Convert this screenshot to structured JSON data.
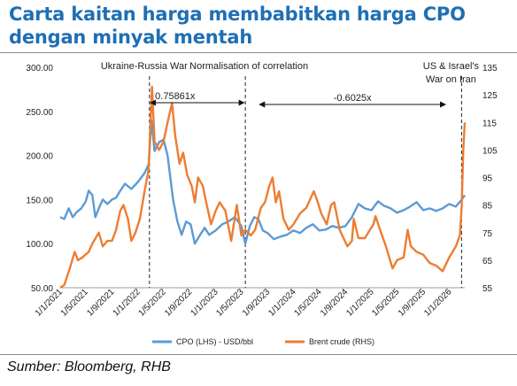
{
  "header": {
    "title": "Carta kaitan harga membabitkan harga CPO dengan minyak mentah"
  },
  "footer": {
    "source": "Sumber: Bloomberg, RHB"
  },
  "colors": {
    "title": "#1f6fb4",
    "cpo": "#5b9bd5",
    "brent": "#ed7d31"
  },
  "chart_data": {
    "type": "line",
    "title": "",
    "x_tick_labels": [
      "1/1/2021",
      "1/5/2021",
      "1/9/2021",
      "1/1/2022",
      "1/5/2022",
      "1/9/2022",
      "1/1/2023",
      "1/5/2023",
      "1/9/2023",
      "1/1/2024",
      "1/5/2024",
      "1/9/2024",
      "1/1/2025",
      "1/5/2025",
      "1/9/2025",
      "1/1/2026"
    ],
    "x_range": [
      "2021-01-01",
      "2026-03-15"
    ],
    "y_left": {
      "range": [
        50,
        300
      ],
      "ticks": [
        "50.00",
        "100.00",
        "150.00",
        "200.00",
        "250.00",
        "300.00"
      ]
    },
    "y_right": {
      "range": [
        55,
        135
      ],
      "ticks": [
        "55",
        "65",
        "75",
        "85",
        "95",
        "105",
        "115",
        "125",
        "135"
      ]
    },
    "annotations": {
      "events": [
        {
          "label": "Ukraine-Russia War",
          "date": "2022-02-24"
        },
        {
          "label": "Normalisation of correlation",
          "date": "2023-05-20"
        },
        {
          "label": "US & Israel's War on Iran",
          "date": "2026-02-28"
        }
      ],
      "correlations": [
        {
          "label": "0.75861x",
          "from": "2022-02-28",
          "to": "2023-05-15"
        },
        {
          "label": "-0.6025x",
          "from": "2023-07-25",
          "to": "2025-12-15"
        }
      ]
    },
    "series": [
      {
        "name": "CPO (LHS) - USD/bbl",
        "axis": "left",
        "points": [
          [
            "2021-01-01",
            130
          ],
          [
            "2021-01-20",
            128
          ],
          [
            "2021-02-10",
            140
          ],
          [
            "2021-03-01",
            130
          ],
          [
            "2021-03-20",
            136
          ],
          [
            "2021-04-10",
            140
          ],
          [
            "2021-05-01",
            148
          ],
          [
            "2021-05-15",
            160
          ],
          [
            "2021-06-01",
            155
          ],
          [
            "2021-06-15",
            130
          ],
          [
            "2021-07-01",
            140
          ],
          [
            "2021-07-20",
            150
          ],
          [
            "2021-08-10",
            145
          ],
          [
            "2021-09-01",
            150
          ],
          [
            "2021-09-20",
            152
          ],
          [
            "2021-10-10",
            160
          ],
          [
            "2021-11-01",
            168
          ],
          [
            "2021-12-01",
            162
          ],
          [
            "2022-01-01",
            170
          ],
          [
            "2022-02-01",
            180
          ],
          [
            "2022-02-20",
            190
          ],
          [
            "2022-03-05",
            240
          ],
          [
            "2022-03-20",
            205
          ],
          [
            "2022-04-10",
            215
          ],
          [
            "2022-05-01",
            218
          ],
          [
            "2022-05-20",
            200
          ],
          [
            "2022-06-15",
            150
          ],
          [
            "2022-07-05",
            125
          ],
          [
            "2022-07-25",
            110
          ],
          [
            "2022-08-15",
            125
          ],
          [
            "2022-09-05",
            122
          ],
          [
            "2022-09-25",
            100
          ],
          [
            "2022-10-20",
            110
          ],
          [
            "2022-11-10",
            118
          ],
          [
            "2022-12-01",
            110
          ],
          [
            "2023-01-01",
            115
          ],
          [
            "2023-02-01",
            122
          ],
          [
            "2023-03-01",
            125
          ],
          [
            "2023-04-01",
            130
          ],
          [
            "2023-05-01",
            120
          ],
          [
            "2023-05-20",
            100
          ],
          [
            "2023-06-10",
            120
          ],
          [
            "2023-07-01",
            130
          ],
          [
            "2023-07-20",
            128
          ],
          [
            "2023-08-10",
            115
          ],
          [
            "2023-09-01",
            112
          ],
          [
            "2023-10-01",
            105
          ],
          [
            "2023-11-01",
            108
          ],
          [
            "2023-12-01",
            110
          ],
          [
            "2024-01-01",
            115
          ],
          [
            "2024-02-01",
            112
          ],
          [
            "2024-03-01",
            118
          ],
          [
            "2024-04-01",
            122
          ],
          [
            "2024-05-01",
            115
          ],
          [
            "2024-06-01",
            116
          ],
          [
            "2024-07-01",
            120
          ],
          [
            "2024-08-01",
            118
          ],
          [
            "2024-09-01",
            120
          ],
          [
            "2024-10-01",
            130
          ],
          [
            "2024-11-01",
            145
          ],
          [
            "2024-12-01",
            140
          ],
          [
            "2025-01-01",
            138
          ],
          [
            "2025-02-01",
            148
          ],
          [
            "2025-03-01",
            143
          ],
          [
            "2025-04-01",
            140
          ],
          [
            "2025-05-01",
            135
          ],
          [
            "2025-06-01",
            138
          ],
          [
            "2025-07-01",
            142
          ],
          [
            "2025-08-01",
            147
          ],
          [
            "2025-09-01",
            138
          ],
          [
            "2025-10-01",
            140
          ],
          [
            "2025-11-01",
            137
          ],
          [
            "2025-12-01",
            140
          ],
          [
            "2026-01-01",
            145
          ],
          [
            "2026-02-01",
            142
          ],
          [
            "2026-03-01",
            150
          ],
          [
            "2026-03-15",
            155
          ]
        ]
      },
      {
        "name": "Brent crude (RHS)",
        "axis": "right",
        "points": [
          [
            "2021-01-01",
            55
          ],
          [
            "2021-01-20",
            56
          ],
          [
            "2021-02-15",
            62
          ],
          [
            "2021-03-10",
            68
          ],
          [
            "2021-03-25",
            65
          ],
          [
            "2021-04-15",
            66
          ],
          [
            "2021-05-15",
            68
          ],
          [
            "2021-06-01",
            71
          ],
          [
            "2021-07-01",
            75
          ],
          [
            "2021-07-20",
            70
          ],
          [
            "2021-08-10",
            72
          ],
          [
            "2021-09-01",
            72
          ],
          [
            "2021-09-20",
            76
          ],
          [
            "2021-10-10",
            83
          ],
          [
            "2021-10-25",
            85
          ],
          [
            "2021-11-15",
            80
          ],
          [
            "2021-12-01",
            72
          ],
          [
            "2021-12-20",
            75
          ],
          [
            "2022-01-10",
            80
          ],
          [
            "2022-02-01",
            90
          ],
          [
            "2022-02-20",
            98
          ],
          [
            "2022-03-08",
            128
          ],
          [
            "2022-03-20",
            108
          ],
          [
            "2022-04-10",
            105
          ],
          [
            "2022-05-01",
            108
          ],
          [
            "2022-05-20",
            115
          ],
          [
            "2022-06-10",
            122
          ],
          [
            "2022-06-25",
            110
          ],
          [
            "2022-07-15",
            100
          ],
          [
            "2022-08-01",
            104
          ],
          [
            "2022-08-20",
            96
          ],
          [
            "2022-09-10",
            92
          ],
          [
            "2022-09-25",
            86
          ],
          [
            "2022-10-10",
            95
          ],
          [
            "2022-11-01",
            92
          ],
          [
            "2022-11-20",
            85
          ],
          [
            "2022-12-10",
            78
          ],
          [
            "2023-01-01",
            83
          ],
          [
            "2023-01-20",
            86
          ],
          [
            "2023-02-15",
            83
          ],
          [
            "2023-03-15",
            72
          ],
          [
            "2023-04-10",
            85
          ],
          [
            "2023-05-01",
            74
          ],
          [
            "2023-05-20",
            76
          ],
          [
            "2023-06-15",
            74
          ],
          [
            "2023-07-05",
            76
          ],
          [
            "2023-08-01",
            84
          ],
          [
            "2023-08-20",
            86
          ],
          [
            "2023-09-10",
            92
          ],
          [
            "2023-09-25",
            95
          ],
          [
            "2023-10-10",
            86
          ],
          [
            "2023-10-25",
            90
          ],
          [
            "2023-11-15",
            80
          ],
          [
            "2023-12-10",
            76
          ],
          [
            "2024-01-01",
            78
          ],
          [
            "2024-02-01",
            82
          ],
          [
            "2024-03-01",
            84
          ],
          [
            "2024-04-05",
            90
          ],
          [
            "2024-04-20",
            87
          ],
          [
            "2024-05-10",
            82
          ],
          [
            "2024-06-05",
            78
          ],
          [
            "2024-06-25",
            85
          ],
          [
            "2024-07-10",
            86
          ],
          [
            "2024-08-05",
            76
          ],
          [
            "2024-09-10",
            70
          ],
          [
            "2024-10-01",
            72
          ],
          [
            "2024-10-10",
            80
          ],
          [
            "2024-11-01",
            73
          ],
          [
            "2024-12-01",
            73
          ],
          [
            "2025-01-10",
            78
          ],
          [
            "2025-01-20",
            81
          ],
          [
            "2025-02-15",
            75
          ],
          [
            "2025-03-10",
            70
          ],
          [
            "2025-04-10",
            62
          ],
          [
            "2025-05-01",
            65
          ],
          [
            "2025-06-01",
            66
          ],
          [
            "2025-06-20",
            76
          ],
          [
            "2025-07-05",
            70
          ],
          [
            "2025-08-01",
            68
          ],
          [
            "2025-09-01",
            67
          ],
          [
            "2025-10-01",
            64
          ],
          [
            "2025-11-01",
            63
          ],
          [
            "2025-12-01",
            61
          ],
          [
            "2026-01-01",
            66
          ],
          [
            "2026-02-01",
            70
          ],
          [
            "2026-02-20",
            74
          ],
          [
            "2026-03-01",
            85
          ],
          [
            "2026-03-08",
            105
          ],
          [
            "2026-03-15",
            115
          ]
        ]
      }
    ]
  }
}
